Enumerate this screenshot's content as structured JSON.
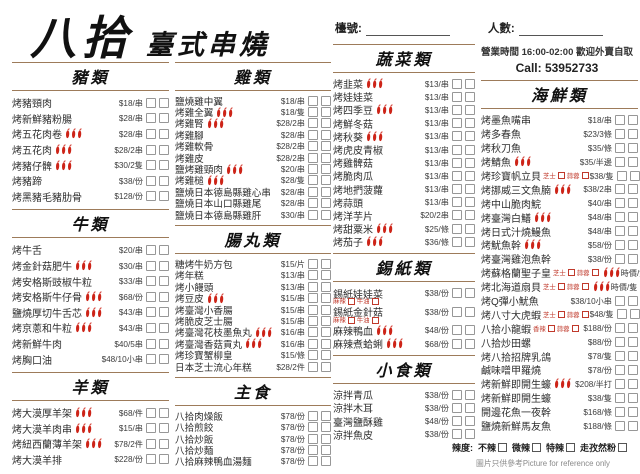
{
  "title": {
    "brand": "八拾",
    "subtitle": "臺式串燒"
  },
  "header": {
    "table_label": "檯號:",
    "pax_label": "人數:",
    "hours": "營業時間 16:00-02:00 歡迎外賣自取",
    "phone": "Call:  53952733"
  },
  "spice_note": {
    "label": "辣度:",
    "options": [
      "不辣",
      "微辣",
      "特辣",
      "走孜然粉"
    ]
  },
  "footer_note": "圖片只供參考Picture for reference only",
  "colors": {
    "accent_line": "#9d7b5a",
    "chili": "#cd2418",
    "option_red": "#c0392b"
  },
  "columns": [
    {
      "sections": [
        {
          "name": "豬類",
          "items": [
            {
              "name": "烤豬頸肉",
              "price": "$18/串"
            },
            {
              "name": "烤新鮮豬粉腸",
              "price": "$28/串"
            },
            {
              "name": "烤五花肉卷",
              "spicy": 3,
              "price": "$28/串"
            },
            {
              "name": "烤五花肉",
              "spicy": 3,
              "price": "$28/2串"
            },
            {
              "name": "烤豬仔髀",
              "spicy": 3,
              "price": "$30/2隻"
            },
            {
              "name": "烤豬蹄",
              "price": "$38/份"
            },
            {
              "name": "烤黑豬毛豬肋骨",
              "price": "$128/份"
            }
          ]
        },
        {
          "name": "牛類",
          "items": [
            {
              "name": "烤牛舌",
              "price": "$20/串"
            },
            {
              "name": "烤金針菇肥牛",
              "spicy": 3,
              "price": "$30/串"
            },
            {
              "name": "烤安格斯豉椒牛粒",
              "price": "$33/串"
            },
            {
              "name": "烤安格斯牛仔骨",
              "spicy": 3,
              "price": "$68/份"
            },
            {
              "name": "鹽燒厚切牛舌芯",
              "spicy": 3,
              "price": "$43/串"
            },
            {
              "name": "烤京蔥和牛粒",
              "spicy": 3,
              "price": "$43/串"
            },
            {
              "name": "烤新鮮牛肉",
              "price": "$40/5串"
            },
            {
              "name": "烤胸口油",
              "price": "$48/10小串"
            }
          ]
        },
        {
          "name": "羊類",
          "items": [
            {
              "name": "烤大漠厚羊架",
              "spicy": 3,
              "price": "$68/件"
            },
            {
              "name": "烤大漠羊肉串",
              "spicy": 3,
              "price": "$15/串"
            },
            {
              "name": "烤紐西蘭薄羊架",
              "spicy": 3,
              "price": "$78/2件"
            },
            {
              "name": "烤大漠羊排",
              "price": "$228/份"
            }
          ]
        }
      ]
    },
    {
      "sections": [
        {
          "name": "雞類",
          "items": [
            {
              "name": "鹽燒雞中翼",
              "price": "$18/串"
            },
            {
              "name": "烤雞全翼",
              "spicy": 3,
              "price": "$18/隻"
            },
            {
              "name": "烤雞腎",
              "spicy": 3,
              "price": "$28/2串"
            },
            {
              "name": "烤雞腳",
              "price": "$28/串"
            },
            {
              "name": "烤雞軟骨",
              "price": "$28/2串"
            },
            {
              "name": "烤雞皮",
              "price": "$28/2串"
            },
            {
              "name": "鹽烤雞頸肉",
              "spicy": 3,
              "price": "$20/串"
            },
            {
              "name": "烤雞槌",
              "spicy": 3,
              "price": "$28/隻"
            },
            {
              "name": "鹽燒日本德島縣雞心串",
              "price": "$28/串"
            },
            {
              "name": "鹽燒日本山口縣雞尾",
              "price": "$28/串"
            },
            {
              "name": "鹽燒日本德島縣雞肝",
              "price": "$30/串"
            }
          ]
        },
        {
          "name": "腸丸類",
          "items": [
            {
              "name": "糖烤牛奶方包",
              "price": "$15/片"
            },
            {
              "name": "烤年糕",
              "price": "$13/串"
            },
            {
              "name": "烤小饅頭",
              "price": "$13/串"
            },
            {
              "name": "烤豆皮",
              "spicy": 3,
              "price": "$15/串"
            },
            {
              "name": "烤臺灣小香腸",
              "price": "$15/串"
            },
            {
              "name": "烤脆皮芝士腸",
              "price": "$15/串"
            },
            {
              "name": "烤臺灣花枝墨魚丸",
              "spicy": 3,
              "price": "$16/串"
            },
            {
              "name": "烤臺灣香菇貢丸",
              "spicy": 3,
              "price": "$16/串"
            },
            {
              "name": "烤珍寶蟹柳皇",
              "price": "$15/條"
            },
            {
              "name": "日本芝士流心年糕",
              "price": "$28/2件"
            }
          ]
        },
        {
          "name": "主食",
          "items": [
            {
              "name": "八拾肉燥飯",
              "price": "$78/份"
            },
            {
              "name": "八拾煎餃",
              "price": "$78/份"
            },
            {
              "name": "八拾炒飯",
              "price": "$78/份"
            },
            {
              "name": "八拾炒麵",
              "price": "$78/份"
            },
            {
              "name": "八拾麻辣鴨血湯麵",
              "price": "$78/份"
            }
          ]
        }
      ]
    },
    {
      "sections": [
        {
          "name": "蔬菜類",
          "items": [
            {
              "name": "烤韭菜",
              "spicy": 3,
              "price": "$13/串"
            },
            {
              "name": "烤娃娃菜",
              "price": "$13/串"
            },
            {
              "name": "烤四季豆",
              "spicy": 3,
              "price": "$13/串"
            },
            {
              "name": "烤鮮冬菇",
              "price": "$13/串"
            },
            {
              "name": "烤秋葵",
              "spicy": 3,
              "price": "$13/串"
            },
            {
              "name": "烤虎皮青椒",
              "price": "$13/串"
            },
            {
              "name": "烤雞髀菇",
              "price": "$13/串"
            },
            {
              "name": "烤脆肉瓜",
              "price": "$13/串"
            },
            {
              "name": "烤地捫菠蘿",
              "price": "$13/串"
            },
            {
              "name": "烤蒜頭",
              "price": "$13/串"
            },
            {
              "name": "烤洋芋片",
              "price": "$20/2串"
            },
            {
              "name": "烤甜粟米",
              "spicy": 3,
              "price": "$25/條"
            },
            {
              "name": "烤茄子",
              "spicy": 3,
              "price": "$36/條"
            }
          ]
        },
        {
          "name": "錫紙類",
          "items": [
            {
              "name": "錫紙娃娃菜",
              "sub": [
                "麻辣",
                "牛油"
              ],
              "price": "$38/份"
            },
            {
              "name": "錫紙金針菇",
              "sub": [
                "麻辣",
                "牛油"
              ],
              "price": "$38/份"
            },
            {
              "name": "麻辣鴨血",
              "spicy": 3,
              "price": "$48/份"
            },
            {
              "name": "麻辣煮蛤蜊",
              "spicy": 3,
              "price": "$68/份"
            }
          ]
        },
        {
          "name": "小食類",
          "items": [
            {
              "name": "涼拌青瓜",
              "price": "$38/份"
            },
            {
              "name": "涼拌木耳",
              "price": "$38/份"
            },
            {
              "name": "臺灣鹽酥雞",
              "price": "$48/份"
            },
            {
              "name": "涼拌魚皮",
              "price": "$38/份"
            }
          ]
        }
      ]
    },
    {
      "sections": [
        {
          "name": "海鮮類",
          "items": [
            {
              "name": "烤墨魚嘴串",
              "price": "$18/串"
            },
            {
              "name": "烤多春魚",
              "price": "$23/3條"
            },
            {
              "name": "烤秋刀魚",
              "price": "$35/條"
            },
            {
              "name": "烤鯖魚",
              "spicy": 3,
              "price": "$35/半邊"
            },
            {
              "name": "烤珍寶帆立貝",
              "opts": [
                "芝士",
                "蒜蓉"
              ],
              "price": "$38/隻"
            },
            {
              "name": "烤挪威三文魚腩",
              "spicy": 3,
              "price": "$38/2串"
            },
            {
              "name": "烤中山脆肉鯇",
              "price": "$40/串"
            },
            {
              "name": "烤臺灣白鱔",
              "spicy": 3,
              "price": "$48/串"
            },
            {
              "name": "烤日式汁燒鰻魚",
              "price": "$48/串"
            },
            {
              "name": "烤魷魚幹",
              "spicy": 3,
              "price": "$58/份"
            },
            {
              "name": "烤臺灣雞泡魚幹",
              "price": "$38/份"
            },
            {
              "name": "烤蘇格蘭聖子皇",
              "opts": [
                "芝士",
                "蒜蓉"
              ],
              "spicy": 3,
              "price": "時價/隻"
            },
            {
              "name": "烤北海道扇貝",
              "opts": [
                "芝士",
                "蒜蓉"
              ],
              "spicy": 3,
              "price": "時價/隻"
            },
            {
              "name": "烤Q彈小魷魚",
              "price": "$38/10小串"
            },
            {
              "name": "烤八寸大虎蝦",
              "opts": [
                "芝士",
                "蒜蓉"
              ],
              "price": "$48/隻"
            },
            {
              "name": "八拾小龍蝦",
              "opts": [
                "香辣",
                "蒜蓉"
              ],
              "price": "$188/份"
            },
            {
              "name": "八拾炒田螺",
              "price": "$88/份"
            },
            {
              "name": "烤八拾招牌乳鴿",
              "price": "$78/隻"
            },
            {
              "name": "鹹味噌甲羅燒",
              "price": "$78/份"
            },
            {
              "name": "烤新鮮即開生蠔",
              "spicy": 3,
              "price": "$208/半打"
            },
            {
              "name": "烤新鮮即開生蠔",
              "price": "$38/隻"
            },
            {
              "name": "開邊花魚一夜幹",
              "price": "$168/條"
            },
            {
              "name": "鹽燒新鮮馬友魚",
              "price": "$188/條"
            }
          ]
        }
      ]
    }
  ]
}
